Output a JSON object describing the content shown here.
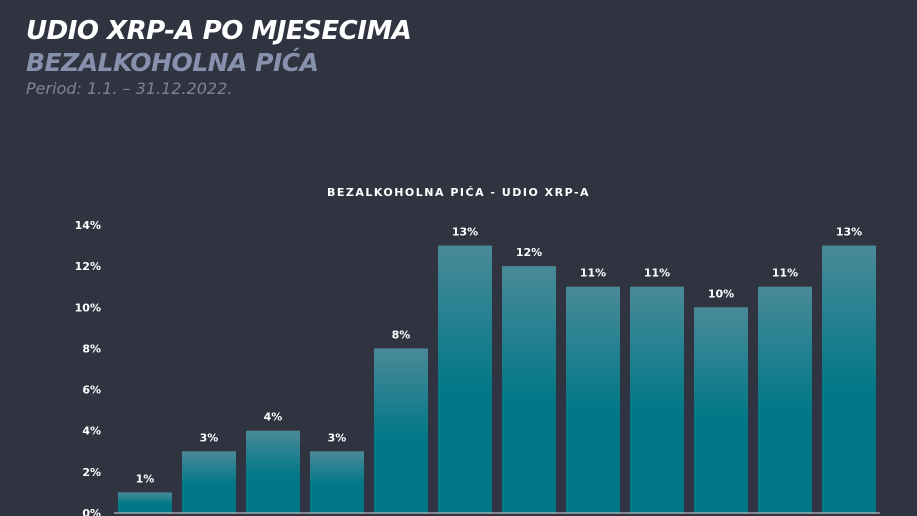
{
  "header": {
    "title": "UDIO XRP-A PO MJESECIMA",
    "subtitle": "BEZALKOHOLNA PIĆA",
    "period": "Period: 1.1. – 31.12.2022."
  },
  "colors": {
    "background": "#2f3440",
    "bar_top": "#4a8a98",
    "bar_bottom": "#007888"
  },
  "chart_data": {
    "type": "bar",
    "title": "BEZALKOHOLNA PIĆA - UDIO XRP-A",
    "xlabel": "",
    "ylabel": "",
    "values": [
      1,
      3,
      4,
      3,
      8,
      13,
      12,
      11,
      11,
      10,
      11,
      13
    ],
    "data_labels": [
      "1%",
      "3%",
      "4%",
      "3%",
      "8%",
      "13%",
      "12%",
      "11%",
      "11%",
      "10%",
      "11%",
      "13%"
    ],
    "ylim": [
      0,
      14
    ],
    "yticks": [
      "0%",
      "2%",
      "4%",
      "6%",
      "8%",
      "10%",
      "12%",
      "14%"
    ],
    "grid": false,
    "legend": "none"
  }
}
